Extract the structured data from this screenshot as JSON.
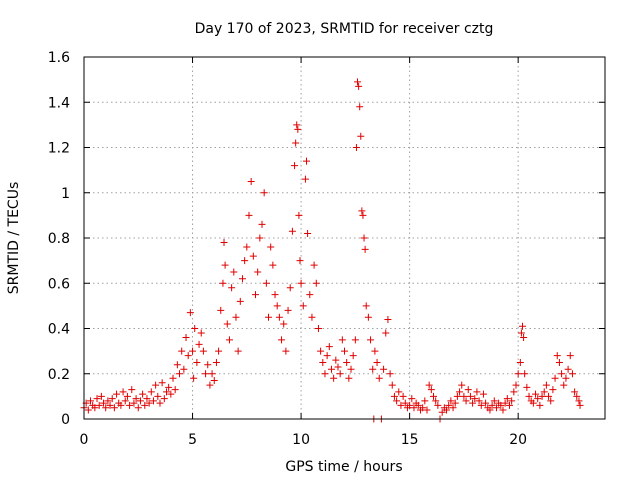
{
  "chart_data": {
    "type": "scatter",
    "title": "Day 170 of 2023, SRMTID for receiver cztg",
    "xlabel": "GPS time / hours",
    "ylabel": "SRMTID / TECUs",
    "xlim": [
      0,
      24
    ],
    "ylim": [
      0,
      1.6
    ],
    "xticks": [
      0,
      5,
      10,
      15,
      20
    ],
    "xtick_labels": [
      "0",
      "5",
      "10",
      "15",
      "20"
    ],
    "yticks": [
      0,
      0.2,
      0.4,
      0.6,
      0.8,
      1,
      1.2,
      1.4,
      1.6
    ],
    "ytick_labels": [
      "0",
      "0.2",
      "0.4",
      "0.6",
      "0.8",
      "1",
      "1.2",
      "1.4",
      "1.6"
    ],
    "grid": true,
    "marker": "+",
    "marker_color": "#e00000",
    "series": [
      {
        "name": "SRMTID",
        "points": [
          [
            0.0,
            0.05
          ],
          [
            0.1,
            0.07
          ],
          [
            0.2,
            0.04
          ],
          [
            0.3,
            0.08
          ],
          [
            0.4,
            0.06
          ],
          [
            0.5,
            0.05
          ],
          [
            0.6,
            0.09
          ],
          [
            0.7,
            0.06
          ],
          [
            0.8,
            0.1
          ],
          [
            0.9,
            0.07
          ],
          [
            1.0,
            0.05
          ],
          [
            1.1,
            0.08
          ],
          [
            1.2,
            0.06
          ],
          [
            1.3,
            0.09
          ],
          [
            1.4,
            0.05
          ],
          [
            1.5,
            0.11
          ],
          [
            1.6,
            0.07
          ],
          [
            1.7,
            0.06
          ],
          [
            1.8,
            0.12
          ],
          [
            1.9,
            0.08
          ],
          [
            2.0,
            0.1
          ],
          [
            2.1,
            0.06
          ],
          [
            2.2,
            0.13
          ],
          [
            2.3,
            0.07
          ],
          [
            2.4,
            0.09
          ],
          [
            2.5,
            0.05
          ],
          [
            2.6,
            0.08
          ],
          [
            2.7,
            0.11
          ],
          [
            2.8,
            0.06
          ],
          [
            2.9,
            0.09
          ],
          [
            3.0,
            0.07
          ],
          [
            3.1,
            0.12
          ],
          [
            3.2,
            0.08
          ],
          [
            3.3,
            0.15
          ],
          [
            3.4,
            0.1
          ],
          [
            3.5,
            0.07
          ],
          [
            3.6,
            0.16
          ],
          [
            3.7,
            0.09
          ],
          [
            3.8,
            0.12
          ],
          [
            3.9,
            0.14
          ],
          [
            4.0,
            0.11
          ],
          [
            4.1,
            0.18
          ],
          [
            4.2,
            0.13
          ],
          [
            4.3,
            0.24
          ],
          [
            4.4,
            0.2
          ],
          [
            4.5,
            0.3
          ],
          [
            4.6,
            0.22
          ],
          [
            4.7,
            0.36
          ],
          [
            4.8,
            0.28
          ],
          [
            4.9,
            0.47
          ],
          [
            5.0,
            0.3
          ],
          [
            5.05,
            0.18
          ],
          [
            5.1,
            0.4
          ],
          [
            5.2,
            0.25
          ],
          [
            5.3,
            0.33
          ],
          [
            5.4,
            0.38
          ],
          [
            5.5,
            0.3
          ],
          [
            5.6,
            0.2
          ],
          [
            5.7,
            0.24
          ],
          [
            5.8,
            0.15
          ],
          [
            5.9,
            0.2
          ],
          [
            6.0,
            0.17
          ],
          [
            6.1,
            0.25
          ],
          [
            6.2,
            0.3
          ],
          [
            6.3,
            0.48
          ],
          [
            6.4,
            0.6
          ],
          [
            6.45,
            0.78
          ],
          [
            6.5,
            0.68
          ],
          [
            6.6,
            0.42
          ],
          [
            6.7,
            0.35
          ],
          [
            6.8,
            0.58
          ],
          [
            6.9,
            0.65
          ],
          [
            7.0,
            0.45
          ],
          [
            7.1,
            0.3
          ],
          [
            7.2,
            0.52
          ],
          [
            7.3,
            0.62
          ],
          [
            7.4,
            0.7
          ],
          [
            7.5,
            0.76
          ],
          [
            7.6,
            0.9
          ],
          [
            7.7,
            1.05
          ],
          [
            7.8,
            0.72
          ],
          [
            7.9,
            0.55
          ],
          [
            8.0,
            0.65
          ],
          [
            8.1,
            0.8
          ],
          [
            8.2,
            0.86
          ],
          [
            8.3,
            1.0
          ],
          [
            8.4,
            0.6
          ],
          [
            8.5,
            0.45
          ],
          [
            8.6,
            0.76
          ],
          [
            8.7,
            0.68
          ],
          [
            8.8,
            0.55
          ],
          [
            8.9,
            0.5
          ],
          [
            9.0,
            0.45
          ],
          [
            9.1,
            0.35
          ],
          [
            9.2,
            0.42
          ],
          [
            9.3,
            0.3
          ],
          [
            9.4,
            0.48
          ],
          [
            9.5,
            0.58
          ],
          [
            9.6,
            0.83
          ],
          [
            9.7,
            1.12
          ],
          [
            9.75,
            1.22
          ],
          [
            9.8,
            1.3
          ],
          [
            9.85,
            1.28
          ],
          [
            9.9,
            0.9
          ],
          [
            9.95,
            0.7
          ],
          [
            10.0,
            0.6
          ],
          [
            10.1,
            0.5
          ],
          [
            10.2,
            1.06
          ],
          [
            10.25,
            1.14
          ],
          [
            10.3,
            0.82
          ],
          [
            10.4,
            0.55
          ],
          [
            10.5,
            0.45
          ],
          [
            10.6,
            0.68
          ],
          [
            10.7,
            0.6
          ],
          [
            10.8,
            0.4
          ],
          [
            10.9,
            0.3
          ],
          [
            11.0,
            0.25
          ],
          [
            11.1,
            0.2
          ],
          [
            11.2,
            0.28
          ],
          [
            11.3,
            0.32
          ],
          [
            11.4,
            0.22
          ],
          [
            11.5,
            0.18
          ],
          [
            11.6,
            0.26
          ],
          [
            11.7,
            0.23
          ],
          [
            11.8,
            0.2
          ],
          [
            11.9,
            0.35
          ],
          [
            12.0,
            0.3
          ],
          [
            12.1,
            0.25
          ],
          [
            12.2,
            0.18
          ],
          [
            12.3,
            0.22
          ],
          [
            12.4,
            0.28
          ],
          [
            12.5,
            0.35
          ],
          [
            12.55,
            1.2
          ],
          [
            12.6,
            1.49
          ],
          [
            12.65,
            1.47
          ],
          [
            12.7,
            1.38
          ],
          [
            12.75,
            1.25
          ],
          [
            12.8,
            0.92
          ],
          [
            12.85,
            0.9
          ],
          [
            12.9,
            0.8
          ],
          [
            12.95,
            0.75
          ],
          [
            13.0,
            0.5
          ],
          [
            13.1,
            0.45
          ],
          [
            13.2,
            0.35
          ],
          [
            13.3,
            0.22
          ],
          [
            13.35,
            0.0
          ],
          [
            13.4,
            0.3
          ],
          [
            13.5,
            0.25
          ],
          [
            13.6,
            0.18
          ],
          [
            13.7,
            0.0
          ],
          [
            13.8,
            0.22
          ],
          [
            13.9,
            0.38
          ],
          [
            14.0,
            0.44
          ],
          [
            14.1,
            0.2
          ],
          [
            14.2,
            0.15
          ],
          [
            14.3,
            0.1
          ],
          [
            14.4,
            0.08
          ],
          [
            14.5,
            0.12
          ],
          [
            14.6,
            0.06
          ],
          [
            14.7,
            0.1
          ],
          [
            14.8,
            0.07
          ],
          [
            14.9,
            0.05
          ],
          [
            15.0,
            0.06
          ],
          [
            15.1,
            0.09
          ],
          [
            15.2,
            0.05
          ],
          [
            15.3,
            0.07
          ],
          [
            15.4,
            0.06
          ],
          [
            15.5,
            0.04
          ],
          [
            15.6,
            0.05
          ],
          [
            15.7,
            0.08
          ],
          [
            15.8,
            0.04
          ],
          [
            15.9,
            0.15
          ],
          [
            16.0,
            0.13
          ],
          [
            16.1,
            0.1
          ],
          [
            16.2,
            0.08
          ],
          [
            16.3,
            0.06
          ],
          [
            16.4,
            0.0
          ],
          [
            16.5,
            0.03
          ],
          [
            16.6,
            0.05
          ],
          [
            16.7,
            0.04
          ],
          [
            16.8,
            0.06
          ],
          [
            16.9,
            0.08
          ],
          [
            17.0,
            0.05
          ],
          [
            17.1,
            0.07
          ],
          [
            17.2,
            0.1
          ],
          [
            17.3,
            0.12
          ],
          [
            17.4,
            0.15
          ],
          [
            17.5,
            0.1
          ],
          [
            17.6,
            0.08
          ],
          [
            17.7,
            0.13
          ],
          [
            17.8,
            0.1
          ],
          [
            17.9,
            0.07
          ],
          [
            18.0,
            0.09
          ],
          [
            18.1,
            0.12
          ],
          [
            18.2,
            0.08
          ],
          [
            18.3,
            0.06
          ],
          [
            18.4,
            0.11
          ],
          [
            18.5,
            0.07
          ],
          [
            18.6,
            0.05
          ],
          [
            18.7,
            0.04
          ],
          [
            18.8,
            0.06
          ],
          [
            18.9,
            0.08
          ],
          [
            19.0,
            0.05
          ],
          [
            19.1,
            0.07
          ],
          [
            19.2,
            0.06
          ],
          [
            19.3,
            0.04
          ],
          [
            19.4,
            0.07
          ],
          [
            19.5,
            0.09
          ],
          [
            19.6,
            0.06
          ],
          [
            19.7,
            0.08
          ],
          [
            19.8,
            0.12
          ],
          [
            19.9,
            0.15
          ],
          [
            20.0,
            0.2
          ],
          [
            20.1,
            0.25
          ],
          [
            20.15,
            0.38
          ],
          [
            20.2,
            0.41
          ],
          [
            20.25,
            0.36
          ],
          [
            20.3,
            0.2
          ],
          [
            20.4,
            0.14
          ],
          [
            20.5,
            0.1
          ],
          [
            20.6,
            0.08
          ],
          [
            20.7,
            0.07
          ],
          [
            20.8,
            0.11
          ],
          [
            20.9,
            0.09
          ],
          [
            21.0,
            0.06
          ],
          [
            21.1,
            0.1
          ],
          [
            21.2,
            0.12
          ],
          [
            21.3,
            0.15
          ],
          [
            21.4,
            0.1
          ],
          [
            21.5,
            0.08
          ],
          [
            21.6,
            0.13
          ],
          [
            21.7,
            0.18
          ],
          [
            21.8,
            0.28
          ],
          [
            21.9,
            0.25
          ],
          [
            22.0,
            0.2
          ],
          [
            22.1,
            0.15
          ],
          [
            22.2,
            0.18
          ],
          [
            22.3,
            0.22
          ],
          [
            22.4,
            0.28
          ],
          [
            22.5,
            0.2
          ],
          [
            22.6,
            0.12
          ],
          [
            22.7,
            0.1
          ],
          [
            22.8,
            0.08
          ],
          [
            22.85,
            0.06
          ]
        ]
      }
    ]
  }
}
